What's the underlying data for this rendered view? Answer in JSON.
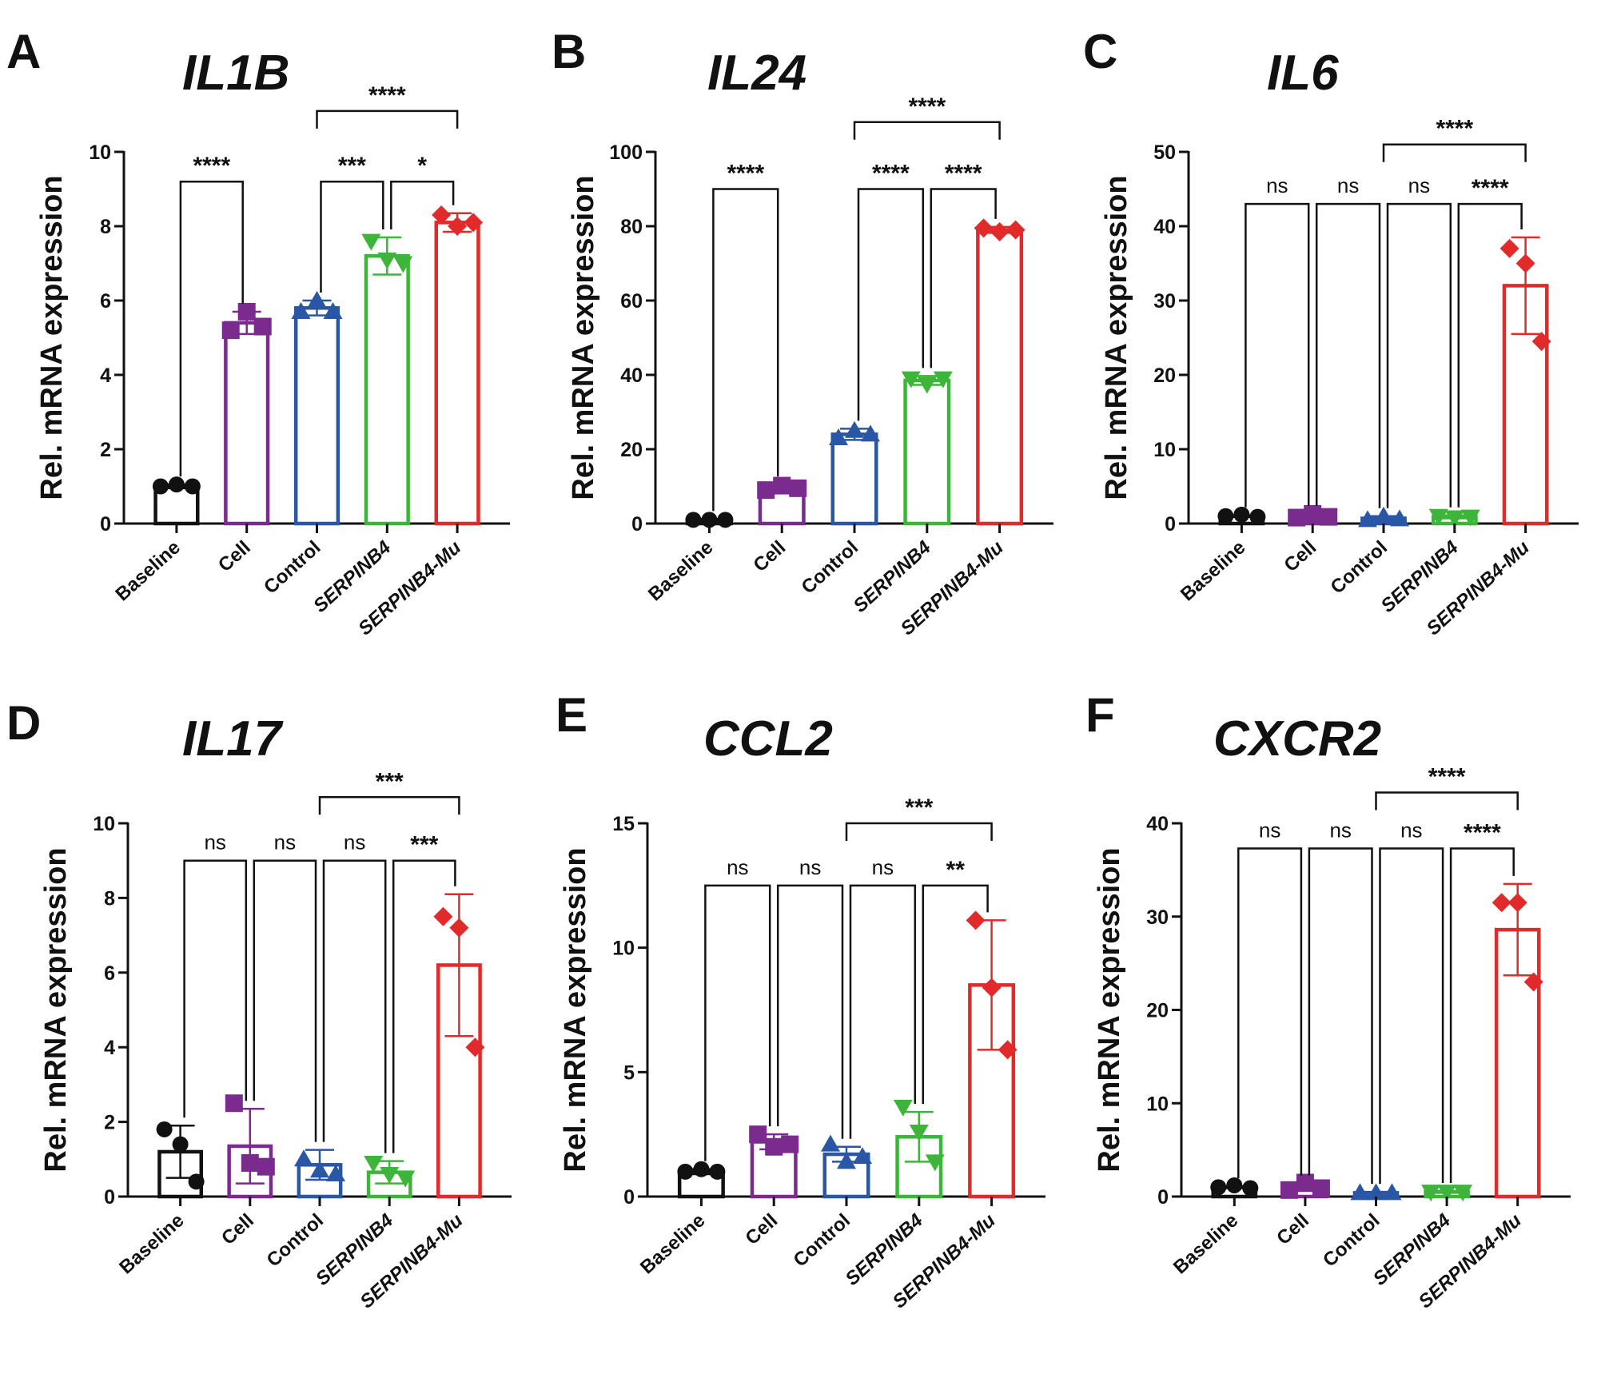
{
  "figure": {
    "colors": {
      "Baseline": "#111111",
      "Cell": "#7b2a8e",
      "Control": "#2a56a6",
      "SERPINB4": "#3db53a",
      "SERPINB4-Mu": "#e12a2a"
    }
  },
  "chart_data": [
    {
      "panel": "A",
      "title": "IL1B",
      "type": "bar",
      "ylabel": "Rel. mRNA expression",
      "ylim": [
        0,
        10
      ],
      "yticks": [
        0,
        2,
        4,
        6,
        8,
        10
      ],
      "categories": [
        "Baseline",
        "Cell",
        "Control",
        "SERPINB4",
        "SERPINB4-Mu"
      ],
      "italic_categories": [
        "SERPINB4",
        "SERPINB4-Mu"
      ],
      "markers": [
        "circle",
        "square",
        "triangle-up",
        "triangle-down",
        "diamond"
      ],
      "values": [
        1.0,
        5.4,
        5.8,
        7.2,
        8.1
      ],
      "sd": [
        0.05,
        0.3,
        0.2,
        0.5,
        0.25
      ],
      "points": [
        [
          1.0,
          1.05,
          1.0
        ],
        [
          5.2,
          5.7,
          5.3
        ],
        [
          5.7,
          6.0,
          5.7
        ],
        [
          7.6,
          7.1,
          7.0
        ],
        [
          8.3,
          8.0,
          8.1
        ]
      ],
      "significance": [
        {
          "from": 0,
          "to": 1,
          "label": "****",
          "level": 9.2
        },
        {
          "from": 2,
          "to": 3,
          "label": "***",
          "level": 9.2
        },
        {
          "from": 3,
          "to": 4,
          "label": "*",
          "level": 9.2
        },
        {
          "from": 2,
          "to": 4,
          "label": "****",
          "level": 11.1
        }
      ]
    },
    {
      "panel": "B",
      "title": "IL24",
      "type": "bar",
      "ylabel": "Rel. mRNA expression",
      "ylim": [
        0,
        100
      ],
      "yticks": [
        0,
        20,
        40,
        60,
        80,
        100
      ],
      "categories": [
        "Baseline",
        "Cell",
        "Control",
        "SERPINB4",
        "SERPINB4-Mu"
      ],
      "italic_categories": [
        "SERPINB4",
        "SERPINB4-Mu"
      ],
      "markers": [
        "circle",
        "square",
        "triangle-up",
        "triangle-down",
        "diamond"
      ],
      "values": [
        1.0,
        9.5,
        24.0,
        38.5,
        79.0
      ],
      "sd": [
        0.2,
        1.0,
        1.5,
        1.2,
        0.8
      ],
      "points": [
        [
          1.0,
          1.0,
          1.0
        ],
        [
          9.0,
          10.2,
          9.5
        ],
        [
          23.0,
          25.0,
          24.0
        ],
        [
          39.0,
          37.5,
          39.0
        ],
        [
          79.5,
          78.5,
          79.0
        ]
      ],
      "significance": [
        {
          "from": 0,
          "to": 1,
          "label": "****",
          "level": 90
        },
        {
          "from": 2,
          "to": 3,
          "label": "****",
          "level": 90
        },
        {
          "from": 3,
          "to": 4,
          "label": "****",
          "level": 90
        },
        {
          "from": 2,
          "to": 4,
          "label": "****",
          "level": 108
        }
      ]
    },
    {
      "panel": "C",
      "title": "IL6",
      "type": "bar",
      "ylabel": "Rel. mRNA expression",
      "ylim": [
        0,
        50
      ],
      "yticks": [
        0,
        10,
        20,
        30,
        40,
        50
      ],
      "categories": [
        "Baseline",
        "Cell",
        "Control",
        "SERPINB4",
        "SERPINB4-Mu"
      ],
      "italic_categories": [
        "SERPINB4",
        "SERPINB4-Mu"
      ],
      "markers": [
        "circle",
        "square",
        "triangle-up",
        "triangle-down",
        "diamond"
      ],
      "values": [
        1.0,
        1.0,
        0.7,
        0.9,
        32.0
      ],
      "sd": [
        0.1,
        0.3,
        0.3,
        0.2,
        6.5
      ],
      "points": [
        [
          1.0,
          1.2,
          0.9
        ],
        [
          0.8,
          1.3,
          0.9
        ],
        [
          0.5,
          1.0,
          0.6
        ],
        [
          1.0,
          0.8,
          0.9
        ],
        [
          37.0,
          35.0,
          24.5
        ]
      ],
      "significance": [
        {
          "from": 0,
          "to": 1,
          "label": "ns",
          "level": 43
        },
        {
          "from": 1,
          "to": 2,
          "label": "ns",
          "level": 43
        },
        {
          "from": 2,
          "to": 3,
          "label": "ns",
          "level": 43
        },
        {
          "from": 3,
          "to": 4,
          "label": "****",
          "level": 43
        },
        {
          "from": 2,
          "to": 4,
          "label": "****",
          "level": 51
        }
      ]
    },
    {
      "panel": "D",
      "title": "IL17",
      "type": "bar",
      "ylabel": "Rel. mRNA expression",
      "ylim": [
        0,
        10
      ],
      "yticks": [
        0,
        2,
        4,
        6,
        8,
        10
      ],
      "categories": [
        "Baseline",
        "Cell",
        "Control",
        "SERPINB4",
        "SERPINB4-Mu"
      ],
      "italic_categories": [
        "SERPINB4",
        "SERPINB4-Mu"
      ],
      "markers": [
        "circle",
        "square",
        "triangle-up",
        "triangle-down",
        "diamond"
      ],
      "values": [
        1.2,
        1.35,
        0.85,
        0.65,
        6.2
      ],
      "sd": [
        0.7,
        1.0,
        0.4,
        0.3,
        1.9
      ],
      "points": [
        [
          1.8,
          1.4,
          0.4
        ],
        [
          2.5,
          0.9,
          0.8
        ],
        [
          1.0,
          0.7,
          0.6
        ],
        [
          0.9,
          0.6,
          0.5
        ],
        [
          7.5,
          7.2,
          4.0
        ]
      ],
      "significance": [
        {
          "from": 0,
          "to": 1,
          "label": "ns",
          "level": 9.0
        },
        {
          "from": 1,
          "to": 2,
          "label": "ns",
          "level": 9.0
        },
        {
          "from": 2,
          "to": 3,
          "label": "ns",
          "level": 9.0
        },
        {
          "from": 3,
          "to": 4,
          "label": "***",
          "level": 9.0
        },
        {
          "from": 2,
          "to": 4,
          "label": "***",
          "level": 10.7
        }
      ]
    },
    {
      "panel": "E",
      "title": "CCL2",
      "type": "bar",
      "ylabel": "Rel. mRNA expression",
      "ylim": [
        0,
        15
      ],
      "yticks": [
        0,
        5,
        10,
        15
      ],
      "categories": [
        "Baseline",
        "Cell",
        "Control",
        "SERPINB4",
        "SERPINB4-Mu"
      ],
      "italic_categories": [
        "SERPINB4",
        "SERPINB4-Mu"
      ],
      "markers": [
        "circle",
        "square",
        "triangle-up",
        "triangle-down",
        "diamond"
      ],
      "values": [
        1.0,
        2.2,
        1.7,
        2.4,
        8.5
      ],
      "sd": [
        0.1,
        0.3,
        0.3,
        1.0,
        2.6
      ],
      "points": [
        [
          1.0,
          1.1,
          1.0
        ],
        [
          2.5,
          2.0,
          2.1
        ],
        [
          2.1,
          1.4,
          1.6
        ],
        [
          3.6,
          2.6,
          1.4
        ],
        [
          11.1,
          8.4,
          5.9
        ]
      ],
      "significance": [
        {
          "from": 0,
          "to": 1,
          "label": "ns",
          "level": 12.5
        },
        {
          "from": 1,
          "to": 2,
          "label": "ns",
          "level": 12.5
        },
        {
          "from": 2,
          "to": 3,
          "label": "ns",
          "level": 12.5
        },
        {
          "from": 3,
          "to": 4,
          "label": "**",
          "level": 12.5
        },
        {
          "from": 2,
          "to": 4,
          "label": "***",
          "level": 15.0
        }
      ]
    },
    {
      "panel": "F",
      "title": "CXCR2",
      "type": "bar",
      "ylabel": "Rel. mRNA expression",
      "ylim": [
        0,
        40
      ],
      "yticks": [
        0,
        10,
        20,
        30,
        40
      ],
      "categories": [
        "Baseline",
        "Cell",
        "Control",
        "SERPINB4",
        "SERPINB4-Mu"
      ],
      "italic_categories": [
        "SERPINB4",
        "SERPINB4-Mu"
      ],
      "markers": [
        "circle",
        "square",
        "triangle-up",
        "triangle-down",
        "diamond"
      ],
      "values": [
        1.0,
        1.0,
        0.4,
        0.5,
        28.6
      ],
      "sd": [
        0.1,
        0.4,
        0.1,
        0.1,
        4.9
      ],
      "points": [
        [
          1.0,
          1.2,
          0.9
        ],
        [
          0.7,
          1.5,
          0.9
        ],
        [
          0.4,
          0.4,
          0.4
        ],
        [
          0.5,
          0.5,
          0.5
        ],
        [
          31.5,
          31.5,
          23.0
        ]
      ],
      "significance": [
        {
          "from": 0,
          "to": 1,
          "label": "ns",
          "level": 37.3
        },
        {
          "from": 1,
          "to": 2,
          "label": "ns",
          "level": 37.3
        },
        {
          "from": 2,
          "to": 3,
          "label": "ns",
          "level": 37.3
        },
        {
          "from": 3,
          "to": 4,
          "label": "****",
          "level": 37.3
        },
        {
          "from": 2,
          "to": 4,
          "label": "****",
          "level": 43.3
        }
      ]
    }
  ]
}
